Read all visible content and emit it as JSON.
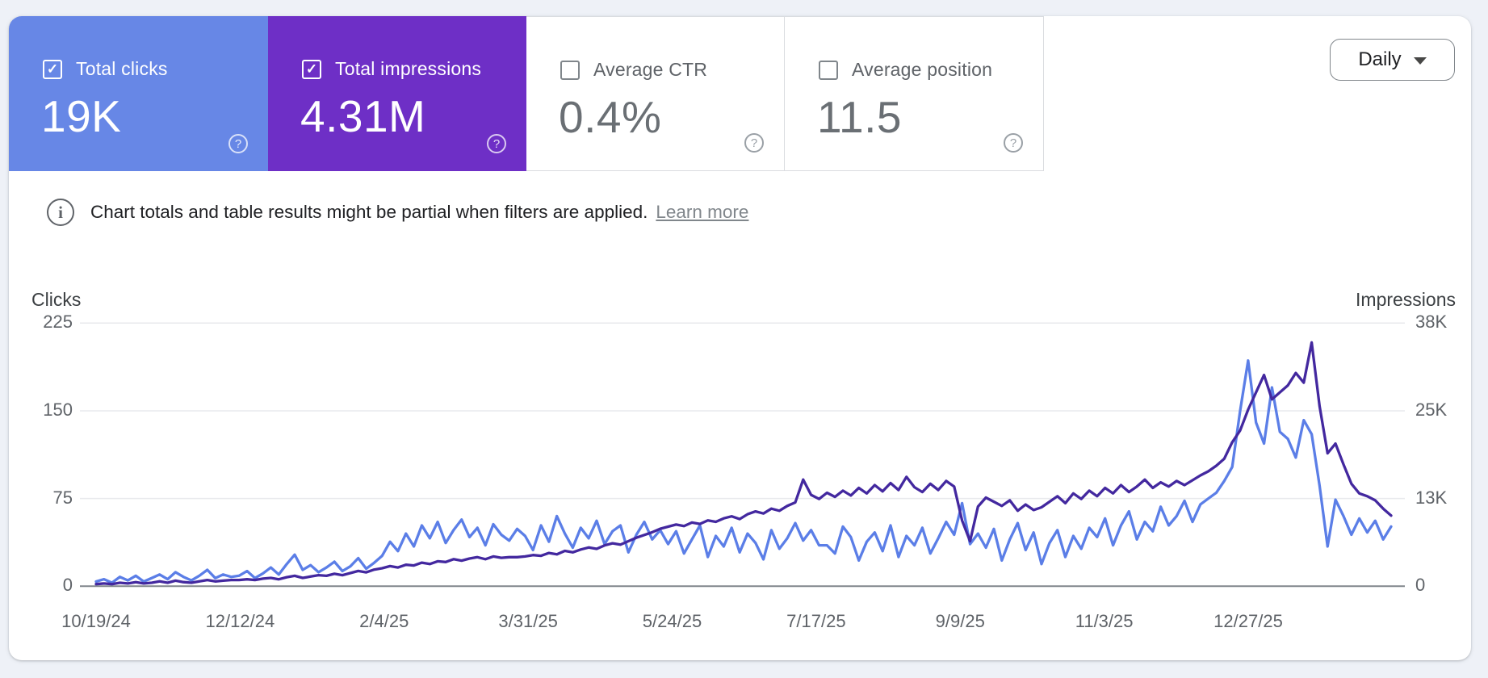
{
  "metrics": {
    "check_glyph": "✓",
    "help_glyph": "?",
    "cards": [
      {
        "id": "total-clicks",
        "label": "Total clicks",
        "value": "19K",
        "checked": true,
        "background": "#6787e6"
      },
      {
        "id": "total-impressions",
        "label": "Total impressions",
        "value": "4.31M",
        "checked": true,
        "background": "#6e2fc6"
      },
      {
        "id": "average-ctr",
        "label": "Average CTR",
        "value": "0.4%",
        "checked": false,
        "background": "#ffffff"
      },
      {
        "id": "average-position",
        "label": "Average position",
        "value": "11.5",
        "checked": false,
        "background": "#ffffff"
      }
    ]
  },
  "granularity": {
    "label": "Daily"
  },
  "notice": {
    "icon_glyph": "i",
    "text": "Chart totals and table results might be partial when filters are applied.",
    "link_label": "Learn more"
  },
  "chart_data": {
    "type": "line",
    "x_tick_labels": [
      "10/19/24",
      "12/12/24",
      "2/4/25",
      "3/31/25",
      "5/24/25",
      "7/17/25",
      "9/9/25",
      "11/3/25",
      "12/27/25"
    ],
    "left_axis": {
      "title": "Clicks",
      "tick_labels": [
        "0",
        "75",
        "150",
        "225"
      ],
      "tick_values": [
        0,
        75,
        150,
        225
      ],
      "range": [
        0,
        225
      ]
    },
    "right_axis": {
      "title": "Impressions",
      "tick_labels": [
        "0",
        "13K",
        "25K",
        "38K"
      ],
      "range": [
        0,
        38000
      ]
    },
    "grid": true,
    "legend_position": "none",
    "series": [
      {
        "name": "Clicks",
        "axis": "left",
        "color": "#5b7ee7",
        "values": [
          4,
          6,
          3,
          8,
          5,
          9,
          4,
          7,
          10,
          6,
          12,
          8,
          5,
          9,
          14,
          7,
          10,
          8,
          9,
          13,
          7,
          11,
          16,
          10,
          19,
          27,
          14,
          18,
          12,
          16,
          21,
          13,
          17,
          24,
          15,
          20,
          26,
          38,
          30,
          45,
          34,
          52,
          41,
          55,
          37,
          48,
          57,
          42,
          50,
          35,
          53,
          44,
          39,
          49,
          43,
          31,
          52,
          38,
          60,
          45,
          33,
          50,
          41,
          56,
          36,
          47,
          52,
          29,
          44,
          55,
          40,
          48,
          36,
          47,
          28,
          40,
          52,
          25,
          43,
          34,
          50,
          29,
          45,
          37,
          23,
          48,
          32,
          41,
          54,
          39,
          48,
          35,
          35,
          28,
          51,
          42,
          22,
          38,
          46,
          30,
          52,
          25,
          43,
          35,
          50,
          28,
          41,
          55,
          44,
          71,
          36,
          45,
          33,
          49,
          22,
          40,
          54,
          31,
          46,
          19,
          37,
          48,
          25,
          43,
          32,
          50,
          42,
          58,
          35,
          52,
          64,
          40,
          55,
          47,
          68,
          52,
          60,
          73,
          55,
          70,
          75,
          80,
          90,
          102,
          150,
          193,
          140,
          122,
          170,
          132,
          126,
          110,
          142,
          130,
          86,
          34,
          74,
          60,
          44,
          58,
          46,
          56,
          40,
          51
        ]
      },
      {
        "name": "Impressions",
        "axis": "right",
        "color": "#43289f",
        "unit": "thousands",
        "values": [
          0.3,
          0.4,
          0.3,
          0.5,
          0.4,
          0.6,
          0.4,
          0.5,
          0.7,
          0.5,
          0.8,
          0.6,
          0.5,
          0.7,
          0.9,
          0.7,
          0.8,
          0.9,
          0.9,
          1.0,
          0.9,
          1.1,
          1.2,
          1.0,
          1.3,
          1.5,
          1.2,
          1.4,
          1.6,
          1.5,
          1.8,
          1.6,
          1.9,
          2.2,
          2.0,
          2.4,
          2.6,
          2.9,
          2.7,
          3.1,
          3.0,
          3.4,
          3.2,
          3.6,
          3.5,
          3.9,
          3.7,
          4.0,
          4.2,
          3.9,
          4.3,
          4.1,
          4.2,
          4.2,
          4.3,
          4.5,
          4.4,
          4.8,
          4.6,
          5.1,
          4.9,
          5.3,
          5.6,
          5.4,
          5.9,
          6.2,
          6.0,
          6.5,
          7.0,
          7.4,
          7.8,
          8.3,
          8.6,
          8.9,
          8.7,
          9.2,
          9.0,
          9.5,
          9.3,
          9.8,
          10.1,
          9.7,
          10.4,
          10.8,
          10.5,
          11.2,
          10.9,
          11.6,
          12.1,
          15.4,
          13.2,
          12.6,
          13.5,
          12.9,
          13.8,
          13.1,
          14.2,
          13.4,
          14.6,
          13.7,
          14.9,
          13.9,
          15.8,
          14.3,
          13.6,
          14.8,
          13.9,
          15.2,
          14.4,
          9.5,
          6.5,
          11.5,
          12.8,
          12.2,
          11.6,
          12.4,
          10.9,
          11.8,
          11.0,
          11.4,
          12.2,
          13.0,
          12.0,
          13.4,
          12.6,
          13.8,
          13.0,
          14.2,
          13.4,
          14.6,
          13.6,
          14.4,
          15.4,
          14.2,
          15.0,
          14.4,
          15.2,
          14.6,
          15.3,
          16.0,
          16.6,
          17.4,
          18.4,
          20.8,
          22.5,
          25.5,
          28.0,
          30.5,
          27.0,
          28.0,
          29.0,
          30.8,
          29.4,
          35.2,
          26.0,
          19.2,
          20.6,
          17.6,
          14.8,
          13.4,
          13.0,
          12.4,
          11.2,
          10.2
        ]
      }
    ],
    "colors": {
      "gridline": "#e8eaed",
      "baseline": "#80868b",
      "tick_text": "#5f6368"
    }
  }
}
